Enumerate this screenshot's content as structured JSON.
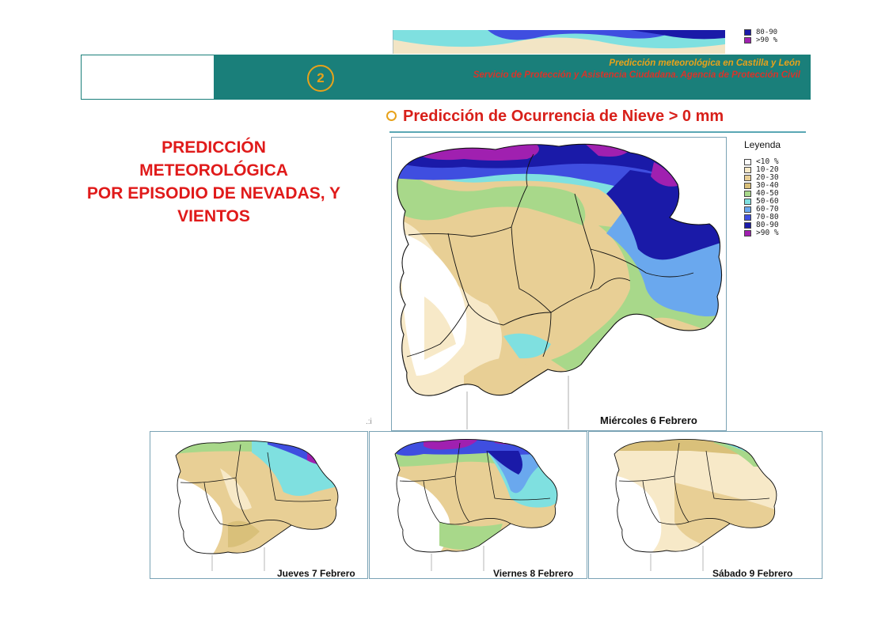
{
  "header": {
    "page_number": "2",
    "line1": "Predicción meteorológica en Castilla y León",
    "line2": "Servicio de Protección y Asistencia Ciudadana. Agencia de Protección Civil"
  },
  "section_title": "Predicción de Ocurrencia de Nieve > 0 mm",
  "main_title": [
    "PREDICCIÓN",
    "METEOROLÓGICA",
    "POR EPISODIO DE NEVADAS, Y",
    "VIENTOS"
  ],
  "legend": {
    "title": "Leyenda",
    "items": [
      {
        "label": "<10 %",
        "color": "#ffffff"
      },
      {
        "label": "10-20",
        "color": "#f7e9c8"
      },
      {
        "label": "20-30",
        "color": "#e8cf95"
      },
      {
        "label": "30-40",
        "color": "#d9c07a"
      },
      {
        "label": "40-50",
        "color": "#a8d88a"
      },
      {
        "label": "50-60",
        "color": "#7fe0e0"
      },
      {
        "label": "60-70",
        "color": "#6aa8ee"
      },
      {
        "label": "70-80",
        "color": "#3f4ee0"
      },
      {
        "label": "80-90",
        "color": "#1a1aa8"
      },
      {
        "label": ">90 %",
        "color": "#a020b0"
      }
    ]
  },
  "top_legend_partial": [
    {
      "label": "80-90",
      "color": "#1a1aa8"
    },
    {
      "label": ">90 %",
      "color": "#a020b0"
    }
  ],
  "maps": {
    "main_caption": "Miércoles 6 Febrero",
    "small": [
      {
        "caption": "Jueves 7 Febrero"
      },
      {
        "caption": "Viernes 8 Febrero"
      },
      {
        "caption": "Sábado 9 Febrero"
      }
    ]
  }
}
